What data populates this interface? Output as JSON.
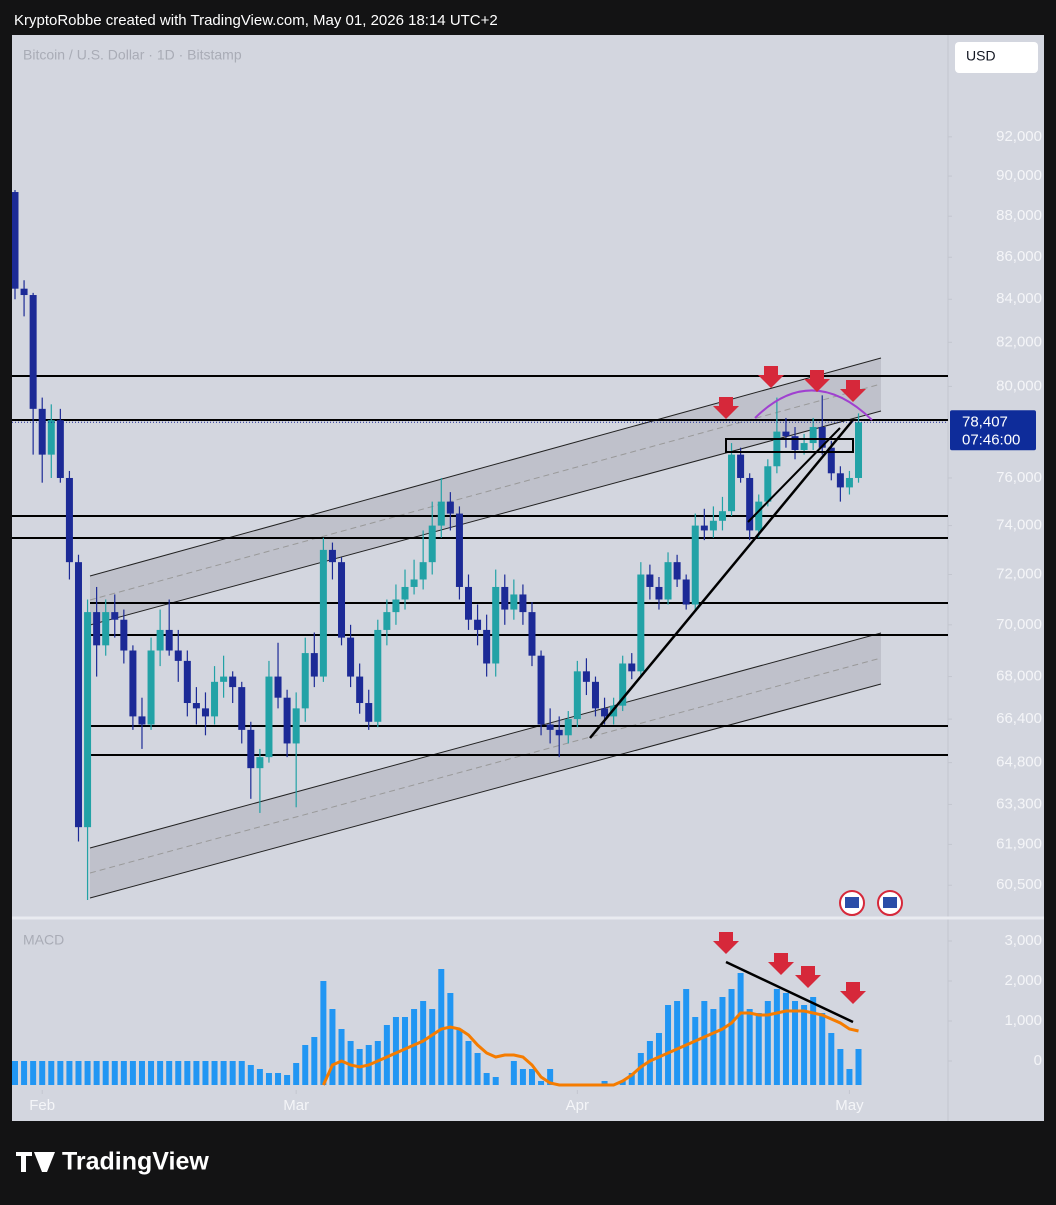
{
  "header": {
    "caption": "KryptoRobbe created with TradingView.com, May 01, 2026 18:14 UTC+2",
    "currency": "USD"
  },
  "footer": {
    "brand": "TradingView"
  },
  "chart_data": [
    {
      "type": "candlestick",
      "title": "Bitcoin / U.S. Dollar · 1D · Bitstamp",
      "log_scale": true,
      "up_color": "#22a2a6",
      "down_color": "#1c2a96",
      "ylim": [
        59400,
        97400
      ],
      "yticks": [
        {
          "value": 92000,
          "label": "92,000"
        },
        {
          "value": 90000,
          "label": "90,000"
        },
        {
          "value": 88000,
          "label": "88,000"
        },
        {
          "value": 86000,
          "label": "86,000"
        },
        {
          "value": 84000,
          "label": "84,000"
        },
        {
          "value": 82000,
          "label": "82,000"
        },
        {
          "value": 80000,
          "label": "80,000"
        },
        {
          "value": 76000,
          "label": "76,000"
        },
        {
          "value": 74000,
          "label": "74,000"
        },
        {
          "value": 72000,
          "label": "72,000"
        },
        {
          "value": 70000,
          "label": "70,000"
        },
        {
          "value": 68000,
          "label": "68,000"
        },
        {
          "value": 66400,
          "label": "66,400"
        },
        {
          "value": 64800,
          "label": "64,800"
        },
        {
          "value": 63300,
          "label": "63,300"
        },
        {
          "value": 61900,
          "label": "61,900"
        },
        {
          "value": 60500,
          "label": "60,500"
        }
      ],
      "xticks": [
        {
          "value": 3,
          "label": "Feb"
        },
        {
          "value": 31,
          "label": "Mar"
        },
        {
          "value": 62,
          "label": "Apr"
        },
        {
          "value": 92,
          "label": "May"
        }
      ],
      "last_price_label": "78,407",
      "countdown": "07:46:00",
      "ohlc": [
        [
          89200,
          89300,
          84000,
          84500
        ],
        [
          84500,
          84900,
          83200,
          84200
        ],
        [
          84200,
          84300,
          77000,
          79000
        ],
        [
          79000,
          79500,
          75800,
          77000
        ],
        [
          77000,
          79200,
          76000,
          78500
        ],
        [
          78500,
          79000,
          75800,
          76000
        ],
        [
          76000,
          76300,
          71800,
          72500
        ],
        [
          72500,
          72800,
          62000,
          62500
        ],
        [
          62500,
          71000,
          60000,
          70500
        ],
        [
          70500,
          71500,
          68000,
          69200
        ],
        [
          69200,
          71000,
          68800,
          70500
        ],
        [
          70500,
          71200,
          69500,
          70200
        ],
        [
          70200,
          70600,
          68500,
          69000
        ],
        [
          69000,
          69200,
          66000,
          66500
        ],
        [
          66500,
          67200,
          65300,
          66200
        ],
        [
          66200,
          69500,
          66000,
          69000
        ],
        [
          69000,
          70600,
          68400,
          69800
        ],
        [
          69800,
          71000,
          68800,
          69000
        ],
        [
          69000,
          69800,
          67800,
          68600
        ],
        [
          68600,
          69000,
          66500,
          67000
        ],
        [
          67000,
          67600,
          66200,
          66800
        ],
        [
          66800,
          67400,
          65800,
          66500
        ],
        [
          66500,
          68400,
          66200,
          67800
        ],
        [
          67800,
          68800,
          67200,
          68000
        ],
        [
          68000,
          68200,
          67000,
          67600
        ],
        [
          67600,
          67800,
          65500,
          66000
        ],
        [
          66000,
          66300,
          63500,
          64600
        ],
        [
          64600,
          65300,
          63000,
          65000
        ],
        [
          65000,
          68600,
          64800,
          68000
        ],
        [
          68000,
          69300,
          66800,
          67200
        ],
        [
          67200,
          67500,
          65000,
          65500
        ],
        [
          65500,
          67400,
          63200,
          66800
        ],
        [
          66800,
          69500,
          66300,
          68900
        ],
        [
          68900,
          69700,
          67600,
          68000
        ],
        [
          68000,
          73500,
          67800,
          73000
        ],
        [
          73000,
          73300,
          71800,
          72500
        ],
        [
          72500,
          72700,
          69200,
          69500
        ],
        [
          69500,
          70000,
          67600,
          68000
        ],
        [
          68000,
          68500,
          66600,
          67000
        ],
        [
          67000,
          67500,
          66000,
          66300
        ],
        [
          66300,
          70200,
          66100,
          69800
        ],
        [
          69800,
          71000,
          69200,
          70500
        ],
        [
          70500,
          71600,
          70000,
          71000
        ],
        [
          71000,
          72200,
          70600,
          71500
        ],
        [
          71500,
          72600,
          71200,
          71800
        ],
        [
          71800,
          73800,
          71400,
          72500
        ],
        [
          72500,
          75000,
          72000,
          74000
        ],
        [
          74000,
          76000,
          73500,
          75000
        ],
        [
          75000,
          75400,
          73800,
          74500
        ],
        [
          74500,
          74800,
          71000,
          71500
        ],
        [
          71500,
          72000,
          69800,
          70200
        ],
        [
          70200,
          70800,
          69200,
          69800
        ],
        [
          69800,
          70400,
          68000,
          68500
        ],
        [
          68500,
          72200,
          68000,
          71500
        ],
        [
          71500,
          72000,
          70000,
          70600
        ],
        [
          70600,
          71800,
          70200,
          71200
        ],
        [
          71200,
          71600,
          70000,
          70500
        ],
        [
          70500,
          70900,
          68400,
          68800
        ],
        [
          68800,
          69000,
          65800,
          66200
        ],
        [
          66200,
          66800,
          65500,
          66000
        ],
        [
          66000,
          66500,
          65000,
          65800
        ],
        [
          65800,
          66700,
          65500,
          66400
        ],
        [
          66400,
          68600,
          66100,
          68200
        ],
        [
          68200,
          68700,
          67300,
          67800
        ],
        [
          67800,
          68000,
          66500,
          66800
        ],
        [
          66800,
          67200,
          66200,
          66500
        ],
        [
          66500,
          67200,
          66200,
          66900
        ],
        [
          66900,
          68800,
          66700,
          68500
        ],
        [
          68500,
          68900,
          67900,
          68200
        ],
        [
          68200,
          72500,
          68000,
          72000
        ],
        [
          72000,
          72400,
          71000,
          71500
        ],
        [
          71500,
          71900,
          70600,
          71000
        ],
        [
          71000,
          72900,
          70800,
          72500
        ],
        [
          72500,
          72800,
          71500,
          71800
        ],
        [
          71800,
          72000,
          70600,
          70800
        ],
        [
          70800,
          74500,
          70600,
          74000
        ],
        [
          74000,
          74700,
          73400,
          73800
        ],
        [
          73800,
          74800,
          73500,
          74200
        ],
        [
          74200,
          75200,
          73800,
          74600
        ],
        [
          74600,
          77500,
          74400,
          77000
        ],
        [
          77000,
          77300,
          75800,
          76000
        ],
        [
          76000,
          76200,
          73400,
          73800
        ],
        [
          73800,
          75300,
          73500,
          75000
        ],
        [
          75000,
          76800,
          74800,
          76500
        ],
        [
          76500,
          79500,
          76200,
          78000
        ],
        [
          78000,
          78600,
          77300,
          77800
        ],
        [
          77800,
          78200,
          76800,
          77200
        ],
        [
          77200,
          77900,
          77000,
          77500
        ],
        [
          77500,
          78600,
          77200,
          78200
        ],
        [
          78200,
          79600,
          77000,
          77300
        ],
        [
          77300,
          77600,
          75900,
          76200
        ],
        [
          76200,
          76500,
          75000,
          75600
        ],
        [
          75600,
          76300,
          75300,
          76000
        ],
        [
          76000,
          78800,
          75800,
          78407
        ]
      ]
    },
    {
      "type": "macd",
      "title": "MACD",
      "color": "#2196f3",
      "signal_color": "#f57c00",
      "ylim": [
        -600,
        3400
      ],
      "yticks": [
        {
          "value": 3000,
          "label": "3,000"
        },
        {
          "value": 2000,
          "label": "2,000"
        },
        {
          "value": 1000,
          "label": "1,000"
        },
        0
      ],
      "values": [
        0,
        0,
        0,
        0,
        0,
        0,
        0,
        0,
        0,
        0,
        0,
        0,
        0,
        0,
        0,
        0,
        0,
        0,
        0,
        0,
        0,
        0,
        0,
        0,
        0,
        0,
        -100,
        -200,
        -300,
        -300,
        -350,
        -50,
        400,
        600,
        2000,
        1300,
        800,
        500,
        300,
        400,
        500,
        900,
        1100,
        1100,
        1300,
        1500,
        1300,
        2300,
        1700,
        800,
        500,
        200,
        -300,
        -400,
        -600,
        0,
        -200,
        -200,
        -500,
        -200,
        -600,
        -600,
        -600,
        -600,
        -600,
        -500,
        -600,
        -500,
        -300,
        200,
        500,
        700,
        1400,
        1500,
        1800,
        1100,
        1500,
        1300,
        1600,
        1800,
        2200,
        1300,
        1200,
        1500,
        1800,
        1700,
        1500,
        1400,
        1600,
        1200,
        700,
        300,
        -200,
        300
      ],
      "signal": [
        null,
        null,
        null,
        null,
        null,
        null,
        null,
        null,
        null,
        null,
        null,
        null,
        null,
        null,
        null,
        null,
        null,
        null,
        null,
        null,
        null,
        null,
        null,
        null,
        null,
        null,
        null,
        null,
        null,
        null,
        null,
        null,
        null,
        null,
        -600,
        -100,
        0,
        -100,
        -150,
        -100,
        0,
        100,
        200,
        300,
        400,
        500,
        650,
        800,
        850,
        800,
        650,
        400,
        200,
        100,
        150,
        150,
        100,
        -100,
        -400,
        -550,
        -600,
        -600,
        -600,
        -600,
        -600,
        -600,
        -600,
        -500,
        -350,
        -150,
        0,
        100,
        200,
        300,
        400,
        500,
        600,
        700,
        800,
        950,
        1200,
        1200,
        1150,
        1150,
        1200,
        1250,
        1250,
        1250,
        1200,
        1150,
        1050,
        950,
        800,
        750
      ]
    }
  ]
}
